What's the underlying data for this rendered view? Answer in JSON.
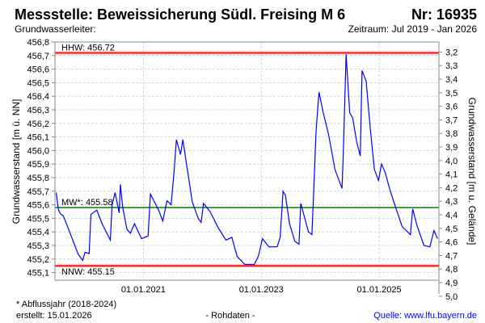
{
  "header": {
    "title": "Messstelle: Beweissicherung Südl. Freising M 6",
    "number": "Nr: 16935",
    "aquifer": "Grundwasserleiter:",
    "period": "Zeitraum: Jul 2019 - Jan 2026"
  },
  "footer": {
    "note": "* Abflussjahr (2018-2024)",
    "created": "erstellt:  15.01.2026",
    "raw": "- Rohdaten -",
    "source": "Quelle: www.lfu.bayern.de"
  },
  "colors": {
    "series": "#0000ff",
    "hhw": "#ff0000",
    "nnw": "#ff0000",
    "mw": "#008000",
    "grid": "#cccccc",
    "source": "#0000ff"
  },
  "chart_data": {
    "type": "line",
    "ylabel": "Grundwasserstand [m ü. NN]",
    "y2label": "Grundwasserstand [m u. Gelände]",
    "ylim": [
      455.05,
      456.8
    ],
    "xlim": [
      2019.5,
      2026.0
    ],
    "ground_level": 459.92,
    "yticks": [
      "456,8",
      "456,7",
      "456,6",
      "456,5",
      "456,4",
      "456,3",
      "456,2",
      "456,1",
      "456,0",
      "455,9",
      "455,8",
      "455,7",
      "455,6",
      "455,5",
      "455,4",
      "455,3",
      "455,2",
      "455,1"
    ],
    "ytick_values": [
      456.8,
      456.7,
      456.6,
      456.5,
      456.4,
      456.3,
      456.2,
      456.1,
      456.0,
      455.9,
      455.8,
      455.7,
      455.6,
      455.5,
      455.4,
      455.3,
      455.2,
      455.1
    ],
    "y2ticks": [
      "3,2",
      "3,3",
      "3,4",
      "3,5",
      "3,6",
      "3,7",
      "3,8",
      "3,9",
      "4,0",
      "4,1",
      "4,2",
      "4,3",
      "4,4",
      "4,5",
      "4,6",
      "4,7",
      "4,8",
      "4,9",
      "5,0"
    ],
    "y2tick_values": [
      3.2,
      3.3,
      3.4,
      3.5,
      3.6,
      3.7,
      3.8,
      3.9,
      4.0,
      4.1,
      4.2,
      4.3,
      4.4,
      4.5,
      4.6,
      4.7,
      4.8,
      4.9,
      5.0
    ],
    "xticks": [
      "01.01.2021",
      "01.01.2023",
      "01.01.2025"
    ],
    "xtick_values": [
      2021.0,
      2023.0,
      2025.0
    ],
    "reference_lines": [
      {
        "name": "HHW",
        "label": "HHW: 456.72",
        "value": 456.72,
        "color": "#ff0000"
      },
      {
        "name": "MW",
        "label": "MW*: 455.58",
        "value": 455.58,
        "color": "#008000"
      },
      {
        "name": "NNW",
        "label": "NNW: 455.15",
        "value": 455.15,
        "color": "#ff0000"
      }
    ],
    "series": [
      {
        "name": "Grundwasserstand",
        "x": [
          2019.52,
          2019.56,
          2019.6,
          2019.64,
          2019.73,
          2019.82,
          2019.89,
          2019.97,
          2020.01,
          2020.08,
          2020.11,
          2020.21,
          2020.3,
          2020.44,
          2020.47,
          2020.52,
          2020.59,
          2020.61,
          2020.65,
          2020.72,
          2020.78,
          2020.85,
          2020.97,
          2021.08,
          2021.12,
          2021.26,
          2021.33,
          2021.4,
          2021.47,
          2021.52,
          2021.56,
          2021.63,
          2021.67,
          2021.76,
          2021.83,
          2021.93,
          2021.98,
          2022.02,
          2022.13,
          2022.27,
          2022.4,
          2022.5,
          2022.59,
          2022.72,
          2022.88,
          2022.95,
          2023.02,
          2023.13,
          2023.27,
          2023.32,
          2023.37,
          2023.41,
          2023.48,
          2023.57,
          2023.64,
          2023.67,
          2023.8,
          2023.86,
          2023.89,
          2023.93,
          2023.96,
          2023.98,
          2024.05,
          2024.14,
          2024.25,
          2024.37,
          2024.39,
          2024.44,
          2024.5,
          2024.55,
          2024.62,
          2024.68,
          2024.71,
          2024.78,
          2024.85,
          2024.92,
          2024.99,
          2025.04,
          2025.1,
          2025.19,
          2025.28,
          2025.39,
          2025.53,
          2025.57,
          2025.64,
          2025.76,
          2025.86,
          2025.93,
          2025.99
        ],
        "y": [
          455.69,
          455.56,
          455.53,
          455.52,
          455.42,
          455.32,
          455.24,
          455.19,
          455.25,
          455.24,
          455.53,
          455.56,
          455.46,
          455.34,
          455.6,
          455.69,
          455.54,
          455.75,
          455.58,
          455.42,
          455.39,
          455.46,
          455.35,
          455.37,
          455.68,
          455.56,
          455.48,
          455.63,
          455.6,
          455.84,
          456.08,
          455.97,
          456.08,
          455.82,
          455.62,
          455.5,
          455.47,
          455.61,
          455.55,
          455.43,
          455.34,
          455.36,
          455.22,
          455.16,
          455.16,
          455.22,
          455.35,
          455.29,
          455.29,
          455.36,
          455.7,
          455.67,
          455.46,
          455.33,
          455.31,
          455.61,
          455.4,
          455.38,
          455.7,
          456.14,
          456.32,
          456.43,
          456.28,
          456.12,
          455.86,
          455.72,
          455.96,
          456.71,
          456.28,
          456.24,
          456.06,
          455.96,
          456.59,
          456.51,
          456.16,
          455.86,
          455.78,
          455.9,
          455.84,
          455.7,
          455.58,
          455.44,
          455.38,
          455.57,
          455.45,
          455.3,
          455.29,
          455.41,
          455.35
        ]
      }
    ]
  }
}
